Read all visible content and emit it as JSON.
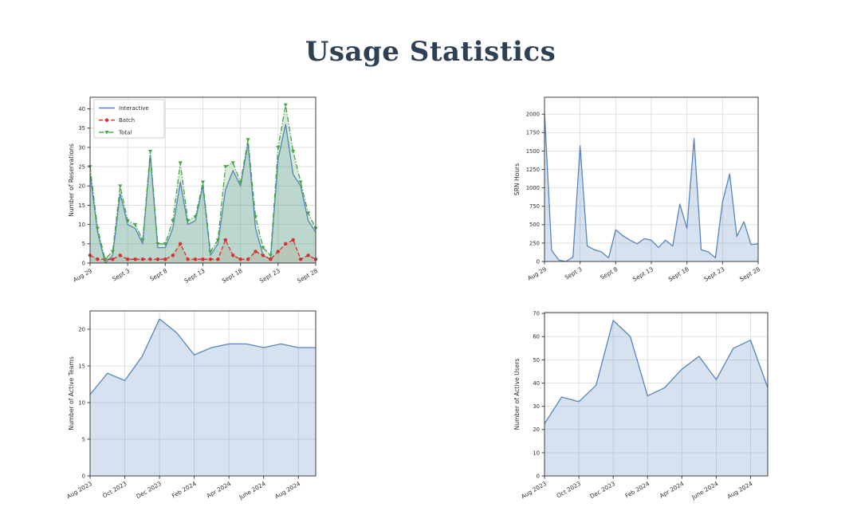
{
  "page": {
    "title": "Usage Statistics",
    "title_color": "#2e4154",
    "background": "#ffffff"
  },
  "chart_data": [
    {
      "id": "reservations",
      "type": "line",
      "title": "",
      "ylabel": "Number of Reservations",
      "ylim": [
        0,
        43
      ],
      "yticks": [
        0,
        5,
        10,
        15,
        20,
        25,
        30,
        35,
        40
      ],
      "n_points": 31,
      "grid": true,
      "xtick_labels": [
        "Aug 29",
        "Sept 3",
        "Sept 8",
        "Sept 13",
        "Sept 18",
        "Sept 23",
        "Sept 28"
      ],
      "xtick_positions": [
        0,
        5,
        10,
        15,
        20,
        25,
        30
      ],
      "legend": {
        "position": "upper-left",
        "entries": [
          "Interactive",
          "Batch",
          "Total"
        ]
      },
      "series": [
        {
          "name": "Interactive",
          "color": "#5585bc",
          "line_style": "solid",
          "marker": "none",
          "fill_color": "rgba(95,140,195,0.22)",
          "values": [
            23,
            8,
            0,
            2,
            18,
            10,
            9,
            5,
            28,
            4,
            4,
            9,
            21,
            10,
            11,
            20,
            2,
            5,
            19,
            24,
            20,
            31,
            9,
            2,
            1,
            27,
            36,
            23,
            20,
            11,
            8
          ]
        },
        {
          "name": "Batch",
          "color": "#d62f2e",
          "line_style": "dashed",
          "marker": "circle",
          "fill_color": "rgba(170,90,50,0.15)",
          "values": [
            2,
            1,
            1,
            1,
            2,
            1,
            1,
            1,
            1,
            1,
            1,
            2,
            5,
            1,
            1,
            1,
            1,
            1,
            6,
            2,
            1,
            1,
            3,
            2,
            1,
            3,
            5,
            6,
            1,
            2,
            1
          ]
        },
        {
          "name": "Total",
          "color": "#47a447",
          "line_style": "dashdot",
          "marker": "triangle-down",
          "fill_color": "rgba(76,166,76,0.22)",
          "values": [
            25,
            9,
            1,
            3,
            20,
            11,
            10,
            6,
            29,
            5,
            5,
            11,
            26,
            11,
            12,
            21,
            3,
            6,
            25,
            26,
            21,
            32,
            12,
            4,
            2,
            30,
            41,
            29,
            21,
            13,
            9
          ]
        }
      ]
    },
    {
      "id": "srn-hours",
      "type": "area",
      "title": "",
      "ylabel": "SRN Hours",
      "ylim": [
        0,
        2230
      ],
      "yticks": [
        0,
        250,
        500,
        750,
        1000,
        1250,
        1500,
        1750,
        2000
      ],
      "n_points": 31,
      "grid": true,
      "xtick_labels": [
        "Aug 29",
        "Sept 3",
        "Sept 8",
        "Sept 13",
        "Sept 18",
        "Sept 23",
        "Sept 28"
      ],
      "xtick_positions": [
        0,
        5,
        10,
        15,
        20,
        25,
        30
      ],
      "legend": null,
      "series": [
        {
          "name": "SRN Hours",
          "color": "#5585bc",
          "line_style": "solid",
          "marker": "none",
          "fill_color": "rgba(95,140,195,0.25)",
          "values": [
            2030,
            150,
            20,
            0,
            60,
            1570,
            210,
            160,
            130,
            50,
            430,
            350,
            290,
            240,
            310,
            290,
            190,
            290,
            210,
            780,
            450,
            1670,
            160,
            130,
            50,
            810,
            1190,
            340,
            540,
            230,
            240
          ]
        }
      ]
    },
    {
      "id": "active-teams",
      "type": "area",
      "title": "",
      "ylabel": "Number of Active Teams",
      "ylim": [
        0,
        22.5
      ],
      "yticks": [
        0,
        5,
        10,
        15,
        20
      ],
      "n_points": 14,
      "grid": true,
      "xtick_labels": [
        "Aug 2023",
        "Oct 2023",
        "Dec 2023",
        "Feb 2024",
        "Apr 2024",
        "June 2024",
        "Aug 2024"
      ],
      "xtick_positions": [
        0,
        2,
        4,
        6,
        8,
        10,
        12
      ],
      "legend": null,
      "series": [
        {
          "name": "Active Teams",
          "color": "#5585bc",
          "line_style": "solid",
          "marker": "none",
          "fill_color": "rgba(95,140,195,0.25)",
          "values": [
            11.1,
            14,
            13,
            16.3,
            21.4,
            19.5,
            16.5,
            17.5,
            18,
            18,
            17.5,
            18,
            17.5,
            17.5
          ]
        }
      ]
    },
    {
      "id": "active-users",
      "type": "area",
      "title": "",
      "ylabel": "Number of Active Users",
      "ylim": [
        0,
        70.4
      ],
      "yticks": [
        0,
        10,
        20,
        30,
        40,
        50,
        60,
        70
      ],
      "n_points": 14,
      "grid": true,
      "xtick_labels": [
        "Aug 2023",
        "Oct 2023",
        "Dec 2023",
        "Feb 2024",
        "Apr 2024",
        "June 2024",
        "Aug 2024"
      ],
      "xtick_positions": [
        0,
        2,
        4,
        6,
        8,
        10,
        12
      ],
      "legend": null,
      "series": [
        {
          "name": "Active Users",
          "color": "#5585bc",
          "line_style": "solid",
          "marker": "none",
          "fill_color": "rgba(95,140,195,0.25)",
          "values": [
            22.5,
            34,
            32,
            39,
            67,
            60,
            34.5,
            38,
            46,
            51.5,
            41.5,
            55,
            58.5,
            38
          ]
        }
      ]
    }
  ]
}
